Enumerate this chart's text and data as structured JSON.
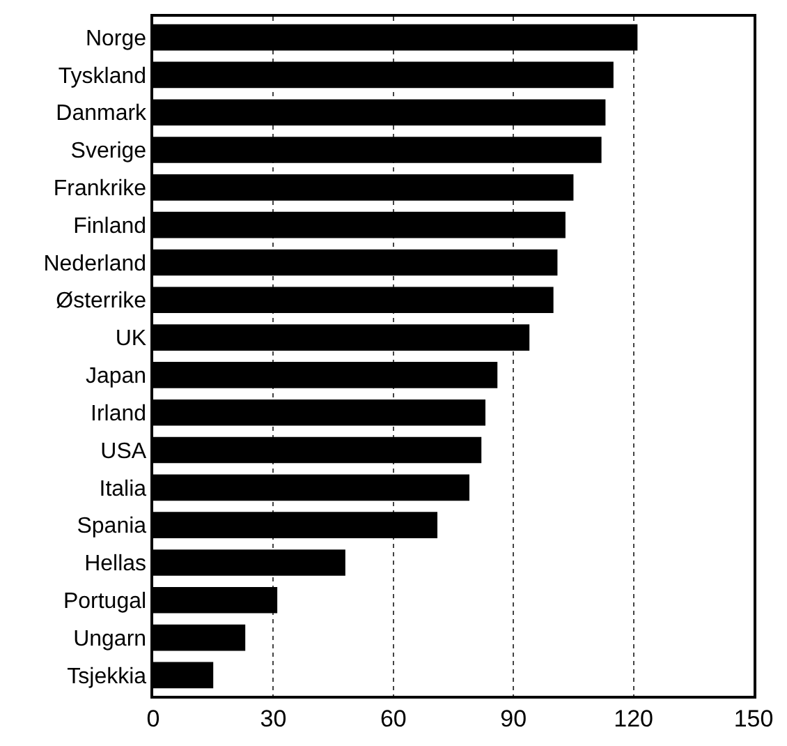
{
  "chart_data": {
    "type": "bar",
    "orientation": "horizontal",
    "categories": [
      "Norge",
      "Tyskland",
      "Danmark",
      "Sverige",
      "Frankrike",
      "Finland",
      "Nederland",
      "Østerrike",
      "UK",
      "Japan",
      "Irland",
      "USA",
      "Italia",
      "Spania",
      "Hellas",
      "Portugal",
      "Ungarn",
      "Tsjekkia"
    ],
    "values": [
      121,
      115,
      113,
      112,
      105,
      103,
      101,
      100,
      94,
      86,
      83,
      82,
      79,
      71,
      48,
      31,
      23,
      15
    ],
    "color": "#000000",
    "xlim": [
      0,
      150
    ],
    "xticks": [
      0,
      30,
      60,
      90,
      120,
      150
    ],
    "grid": "x"
  }
}
